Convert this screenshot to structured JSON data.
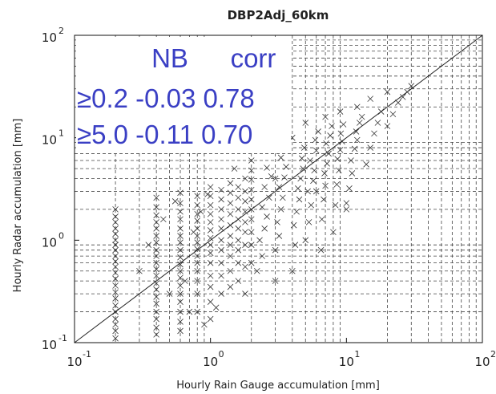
{
  "chart_data": {
    "type": "scatter",
    "title": "DBP2Adj_60km",
    "xlabel": "Hourly Rain Gauge accumulation [mm]",
    "ylabel": "Hourly Radar accumulation [mm]",
    "xscale": "log",
    "yscale": "log",
    "xlim": [
      0.1,
      100
    ],
    "ylim": [
      0.1,
      100
    ],
    "x_ticks": [
      {
        "base": "10",
        "exp": "-1"
      },
      {
        "base": "10",
        "exp": "0"
      },
      {
        "base": "10",
        "exp": "1"
      },
      {
        "base": "10",
        "exp": "2"
      }
    ],
    "y_ticks": [
      {
        "base": "10",
        "exp": "-1"
      },
      {
        "base": "10",
        "exp": "0"
      },
      {
        "base": "10",
        "exp": "1"
      },
      {
        "base": "10",
        "exp": "2"
      }
    ],
    "grid": true,
    "reference_line": "1:1",
    "marker": "x",
    "table": {
      "header": [
        "NB",
        "corr"
      ],
      "rows": [
        [
          "≥0.2",
          "-0.03",
          "0.78"
        ],
        [
          "≥5.0",
          "-0.11",
          "0.70"
        ]
      ]
    },
    "points": [
      [
        0.2,
        0.11
      ],
      [
        0.2,
        0.13
      ],
      [
        0.2,
        0.15
      ],
      [
        0.2,
        0.17
      ],
      [
        0.2,
        0.2
      ],
      [
        0.2,
        0.23
      ],
      [
        0.2,
        0.27
      ],
      [
        0.2,
        0.31
      ],
      [
        0.2,
        0.36
      ],
      [
        0.2,
        0.42
      ],
      [
        0.2,
        0.48
      ],
      [
        0.2,
        0.55
      ],
      [
        0.2,
        0.62
      ],
      [
        0.2,
        0.7
      ],
      [
        0.2,
        0.8
      ],
      [
        0.2,
        0.9
      ],
      [
        0.2,
        1.0
      ],
      [
        0.2,
        1.15
      ],
      [
        0.2,
        1.3
      ],
      [
        0.2,
        1.5
      ],
      [
        0.2,
        1.7
      ],
      [
        0.2,
        2.0
      ],
      [
        0.4,
        0.12
      ],
      [
        0.4,
        0.14
      ],
      [
        0.4,
        0.17
      ],
      [
        0.4,
        0.2
      ],
      [
        0.4,
        0.24
      ],
      [
        0.4,
        0.28
      ],
      [
        0.4,
        0.33
      ],
      [
        0.4,
        0.38
      ],
      [
        0.4,
        0.45
      ],
      [
        0.4,
        0.52
      ],
      [
        0.4,
        0.6
      ],
      [
        0.4,
        0.7
      ],
      [
        0.4,
        0.8
      ],
      [
        0.4,
        0.95
      ],
      [
        0.4,
        1.1
      ],
      [
        0.4,
        1.3
      ],
      [
        0.4,
        1.5
      ],
      [
        0.4,
        1.75
      ],
      [
        0.4,
        2.1
      ],
      [
        0.4,
        2.6
      ],
      [
        0.6,
        0.13
      ],
      [
        0.6,
        0.16
      ],
      [
        0.6,
        0.2
      ],
      [
        0.6,
        0.25
      ],
      [
        0.6,
        0.3
      ],
      [
        0.6,
        0.36
      ],
      [
        0.6,
        0.43
      ],
      [
        0.6,
        0.5
      ],
      [
        0.6,
        0.58
      ],
      [
        0.6,
        0.68
      ],
      [
        0.6,
        0.8
      ],
      [
        0.6,
        0.95
      ],
      [
        0.6,
        1.1
      ],
      [
        0.6,
        1.3
      ],
      [
        0.6,
        1.6
      ],
      [
        0.6,
        1.9
      ],
      [
        0.6,
        2.3
      ],
      [
        0.6,
        2.9
      ],
      [
        0.8,
        0.2
      ],
      [
        0.8,
        0.3
      ],
      [
        0.8,
        0.4
      ],
      [
        0.8,
        0.5
      ],
      [
        0.8,
        0.6
      ],
      [
        0.8,
        0.7
      ],
      [
        0.8,
        0.82
      ],
      [
        0.8,
        0.95
      ],
      [
        0.8,
        1.1
      ],
      [
        0.8,
        1.3
      ],
      [
        0.8,
        1.55
      ],
      [
        0.8,
        1.8
      ],
      [
        0.8,
        2.2
      ],
      [
        0.8,
        2.7
      ],
      [
        1.0,
        0.17
      ],
      [
        1.0,
        0.25
      ],
      [
        1.0,
        0.35
      ],
      [
        1.0,
        0.45
      ],
      [
        1.0,
        0.6
      ],
      [
        1.0,
        0.75
      ],
      [
        1.0,
        0.9
      ],
      [
        1.0,
        1.05
      ],
      [
        1.0,
        1.25
      ],
      [
        1.0,
        1.5
      ],
      [
        1.0,
        1.8
      ],
      [
        1.0,
        2.2
      ],
      [
        1.0,
        2.7
      ],
      [
        1.0,
        3.3
      ],
      [
        1.2,
        0.3
      ],
      [
        1.2,
        0.45
      ],
      [
        1.2,
        0.6
      ],
      [
        1.2,
        0.8
      ],
      [
        1.2,
        1.0
      ],
      [
        1.2,
        1.3
      ],
      [
        1.2,
        1.6
      ],
      [
        1.2,
        2.0
      ],
      [
        1.2,
        2.5
      ],
      [
        1.2,
        3.1
      ],
      [
        1.4,
        0.35
      ],
      [
        1.4,
        0.5
      ],
      [
        1.4,
        0.7
      ],
      [
        1.4,
        0.9
      ],
      [
        1.4,
        1.1
      ],
      [
        1.4,
        1.4
      ],
      [
        1.4,
        1.8
      ],
      [
        1.4,
        2.3
      ],
      [
        1.4,
        2.9
      ],
      [
        1.4,
        3.6
      ],
      [
        1.6,
        0.4
      ],
      [
        1.6,
        0.6
      ],
      [
        1.6,
        0.8
      ],
      [
        1.6,
        1.0
      ],
      [
        1.6,
        1.3
      ],
      [
        1.6,
        1.6
      ],
      [
        1.6,
        2.0
      ],
      [
        1.6,
        2.6
      ],
      [
        1.6,
        3.3
      ],
      [
        1.8,
        0.3
      ],
      [
        1.8,
        0.55
      ],
      [
        1.8,
        0.9
      ],
      [
        1.8,
        1.2
      ],
      [
        1.8,
        1.5
      ],
      [
        1.8,
        1.9
      ],
      [
        1.8,
        2.4
      ],
      [
        1.8,
        3.0
      ],
      [
        1.8,
        4.0
      ],
      [
        2.0,
        0.6
      ],
      [
        2.0,
        0.9
      ],
      [
        2.0,
        1.2
      ],
      [
        2.0,
        1.6
      ],
      [
        2.0,
        2.0
      ],
      [
        2.0,
        2.5
      ],
      [
        2.0,
        3.1
      ],
      [
        2.0,
        3.9
      ],
      [
        2.0,
        4.8
      ],
      [
        2.2,
        0.5
      ],
      [
        2.4,
        0.7
      ],
      [
        2.3,
        1.0
      ],
      [
        2.5,
        1.3
      ],
      [
        2.6,
        1.7
      ],
      [
        2.4,
        2.1
      ],
      [
        2.7,
        2.6
      ],
      [
        2.5,
        3.3
      ],
      [
        2.8,
        4.2
      ],
      [
        2.6,
        5.1
      ],
      [
        3.0,
        0.4
      ],
      [
        3.0,
        0.8
      ],
      [
        3.2,
        1.1
      ],
      [
        3.1,
        1.5
      ],
      [
        3.3,
        2.0
      ],
      [
        3.4,
        2.6
      ],
      [
        3.2,
        3.3
      ],
      [
        3.5,
        4.1
      ],
      [
        3.6,
        5.2
      ],
      [
        3.3,
        6.4
      ],
      [
        4.0,
        0.5
      ],
      [
        4.2,
        0.9
      ],
      [
        4.1,
        1.4
      ],
      [
        4.3,
        1.9
      ],
      [
        4.5,
        2.5
      ],
      [
        4.4,
        3.2
      ],
      [
        4.6,
        4.0
      ],
      [
        4.8,
        5.0
      ],
      [
        4.7,
        6.3
      ],
      [
        4.9,
        8.0
      ],
      [
        5.0,
        1.0
      ],
      [
        5.3,
        1.5
      ],
      [
        5.5,
        2.2
      ],
      [
        5.2,
        3.0
      ],
      [
        5.7,
        3.8
      ],
      [
        5.8,
        4.8
      ],
      [
        5.4,
        6.0
      ],
      [
        6.0,
        7.5
      ],
      [
        5.9,
        9.5
      ],
      [
        6.2,
        11.5
      ],
      [
        6.5,
        0.8
      ],
      [
        6.6,
        1.6
      ],
      [
        6.8,
        2.5
      ],
      [
        7.0,
        3.4
      ],
      [
        6.9,
        4.5
      ],
      [
        7.2,
        5.6
      ],
      [
        7.4,
        7.0
      ],
      [
        7.1,
        8.8
      ],
      [
        7.6,
        10.5
      ],
      [
        7.8,
        13.0
      ],
      [
        8.0,
        1.2
      ],
      [
        8.3,
        2.2
      ],
      [
        8.5,
        3.5
      ],
      [
        8.8,
        4.8
      ],
      [
        8.6,
        6.2
      ],
      [
        9.0,
        7.6
      ],
      [
        9.3,
        9.2
      ],
      [
        9.1,
        11.0
      ],
      [
        9.5,
        13.5
      ],
      [
        10.0,
        2.0
      ],
      [
        10.5,
        3.2
      ],
      [
        11.0,
        4.5
      ],
      [
        10.8,
        6.0
      ],
      [
        11.5,
        7.8
      ],
      [
        12.0,
        9.5
      ],
      [
        11.8,
        11.5
      ],
      [
        12.5,
        14.0
      ],
      [
        13.0,
        16.0
      ],
      [
        14.0,
        5.5
      ],
      [
        15.0,
        8.0
      ],
      [
        16.0,
        11.0
      ],
      [
        17.0,
        14.0
      ],
      [
        18.0,
        18.0
      ],
      [
        20.0,
        13.0
      ],
      [
        22.0,
        17.0
      ],
      [
        24.0,
        22.0
      ],
      [
        26.0,
        25.0
      ],
      [
        28.0,
        28.0
      ],
      [
        30.0,
        32.0
      ],
      [
        12.0,
        20.0
      ],
      [
        9.0,
        18.0
      ],
      [
        7.0,
        16.0
      ],
      [
        15.0,
        24.0
      ],
      [
        20.0,
        28.0
      ],
      [
        10.0,
        2.3
      ],
      [
        6.0,
        3.0
      ],
      [
        3.0,
        4.0
      ],
      [
        1.5,
        5.0
      ],
      [
        2.0,
        6.0
      ],
      [
        4.0,
        10.0
      ],
      [
        5.0,
        14.0
      ],
      [
        0.5,
        0.3
      ],
      [
        0.7,
        0.2
      ],
      [
        0.9,
        0.15
      ],
      [
        1.1,
        0.22
      ],
      [
        0.3,
        0.5
      ],
      [
        0.35,
        0.9
      ],
      [
        0.45,
        1.6
      ],
      [
        0.55,
        2.4
      ],
      [
        0.65,
        0.4
      ],
      [
        0.75,
        1.2
      ],
      [
        0.85,
        1.9
      ],
      [
        0.95,
        2.8
      ]
    ]
  }
}
